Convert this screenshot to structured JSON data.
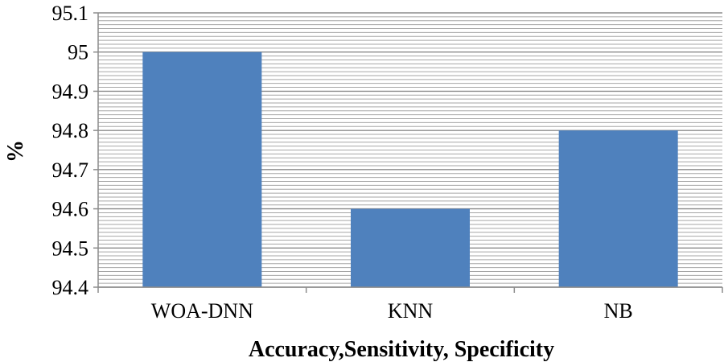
{
  "chart_data": {
    "type": "bar",
    "title": "",
    "xlabel": "Accuracy,Sensitivity, Specificity",
    "ylabel": "%",
    "categories": [
      "WOA-DNN",
      "KNN",
      "NB"
    ],
    "values": [
      95.0,
      94.6,
      94.8
    ],
    "ylim": [
      94.4,
      95.1
    ],
    "yticks": [
      "94.4",
      "94.5",
      "94.6",
      "94.7",
      "94.8",
      "94.9",
      "95",
      "95.1"
    ],
    "grid": true,
    "bar_color": "#4f81bd",
    "gridline_color": "#a6a6a6"
  }
}
